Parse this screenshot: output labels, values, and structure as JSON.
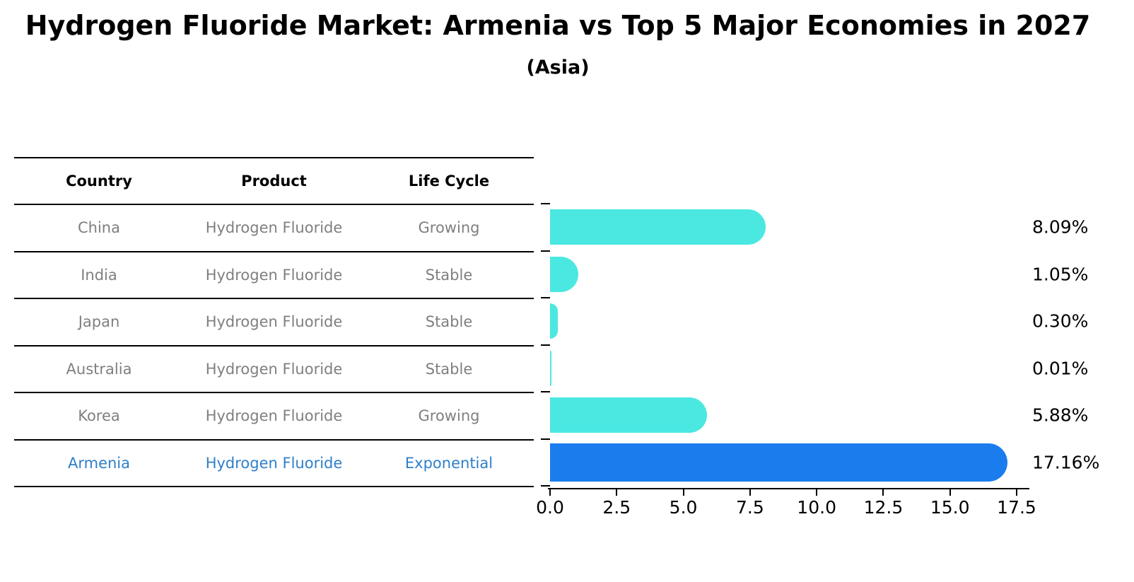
{
  "title": "Hydrogen Fluoride Market: Armenia vs Top 5 Major Economies in 2027",
  "subtitle": "(Asia)",
  "table": {
    "headers": [
      "Country",
      "Product",
      "Life Cycle"
    ]
  },
  "rows": [
    {
      "country": "China",
      "product": "Hydrogen Fluoride",
      "life_cycle": "Growing",
      "value": 8.09,
      "label": "8.09%",
      "highlight": false
    },
    {
      "country": "India",
      "product": "Hydrogen Fluoride",
      "life_cycle": "Stable",
      "value": 1.05,
      "label": "1.05%",
      "highlight": false
    },
    {
      "country": "Japan",
      "product": "Hydrogen Fluoride",
      "life_cycle": "Stable",
      "value": 0.3,
      "label": "0.30%",
      "highlight": false
    },
    {
      "country": "Australia",
      "product": "Hydrogen Fluoride",
      "life_cycle": "Stable",
      "value": 0.01,
      "label": "0.01%",
      "highlight": false
    },
    {
      "country": "Korea",
      "product": "Hydrogen Fluoride",
      "life_cycle": "Growing",
      "value": 5.88,
      "label": "5.88%",
      "highlight": false
    },
    {
      "country": "Armenia",
      "product": "Hydrogen Fluoride",
      "life_cycle": "Exponential",
      "value": 17.16,
      "label": "17.16%",
      "highlight": true
    }
  ],
  "chart_data": {
    "type": "bar",
    "orientation": "horizontal",
    "title": "Hydrogen Fluoride Market: Armenia vs Top 5 Major Economies in 2027",
    "subtitle": "(Asia)",
    "categories": [
      "China",
      "India",
      "Japan",
      "Australia",
      "Korea",
      "Armenia"
    ],
    "values": [
      8.09,
      1.05,
      0.3,
      0.01,
      5.88,
      17.16
    ],
    "value_labels": [
      "8.09%",
      "1.05%",
      "0.30%",
      "0.01%",
      "5.88%",
      "17.16%"
    ],
    "xlabel": "",
    "ylabel": "",
    "xlim": [
      0,
      17.5
    ],
    "xticks": [
      0.0,
      2.5,
      5.0,
      7.5,
      10.0,
      12.5,
      15.0,
      17.5
    ],
    "xtick_labels": [
      "0.0",
      "2.5",
      "5.0",
      "7.5",
      "10.0",
      "12.5",
      "15.0",
      "17.5"
    ],
    "grid": false,
    "legend": false
  },
  "colors": {
    "bar_default": "#4BE8E1",
    "bar_highlight": "#1B7CED",
    "bar_highlight_border": "#1B7CED",
    "table_text": "#7f7f7f",
    "highlight_text": "#2E7FC9",
    "axis_line": "#000000",
    "label_text": "#000000"
  }
}
